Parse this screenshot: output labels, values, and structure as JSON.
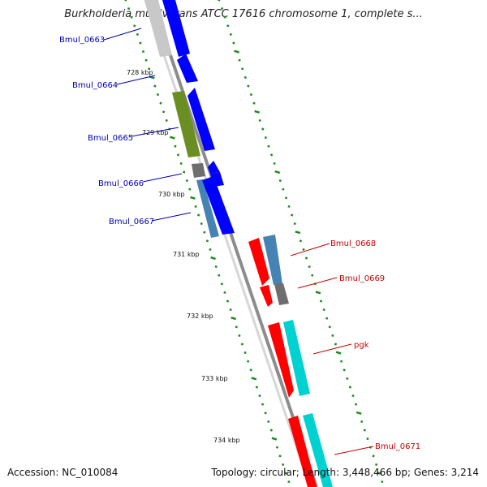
{
  "title": "Burkholderia multivorans ATCC 17616 chromosome 1, complete s...",
  "accession_text": "Accession: NC_010084",
  "summary_text": "Topology: circular; Length: 3,448,466 bp; Genes: 3,214",
  "kbp_labels": [
    "728 kbp",
    "729 kbp",
    "730 kbp",
    "731 kbp",
    "732 kbp",
    "733 kbp",
    "734 kbp"
  ],
  "genes_left": [
    "Bmul_0663",
    "Bmul_0664",
    "Bmul_0665",
    "Bmul_0666",
    "Bmul_0667"
  ],
  "genes_right": [
    "Bmul_0668",
    "Bmul_0669",
    "pgk",
    "Bmul_0671"
  ],
  "colors": {
    "backbone": "#8c8c8c",
    "tick": "#1e8c1e",
    "forward_gene": "#0000ff",
    "reverse_gene": "#ff0000",
    "left_label": "#0000b4",
    "right_label": "#c80000",
    "feature_gray": "#6e6e6e",
    "feature_olive": "#6b8e23",
    "feature_steel": "#4682b4",
    "feature_cyan": "#00d2d2"
  }
}
